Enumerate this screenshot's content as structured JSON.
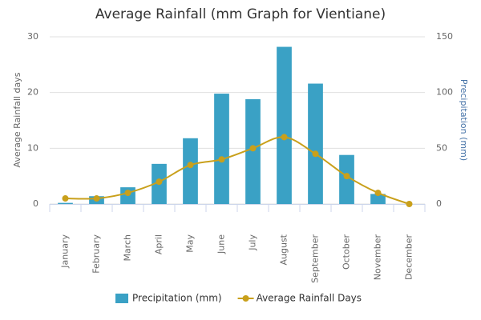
{
  "chart_data": {
    "type": "bar",
    "title": "Average Rainfall (mm Graph for Vientiane)",
    "categories": [
      "January",
      "February",
      "March",
      "April",
      "May",
      "June",
      "July",
      "August",
      "September",
      "October",
      "November",
      "December"
    ],
    "series": [
      {
        "name": "Precipitation (mm)",
        "type": "bar",
        "axis": "y2",
        "color": "#3aa1c5",
        "values": [
          1,
          7,
          15,
          36,
          59,
          99,
          94,
          141,
          108,
          44,
          9,
          0
        ]
      },
      {
        "name": "Average Rainfall Days",
        "type": "line",
        "axis": "y",
        "color": "#c9a01b",
        "values": [
          1,
          1,
          2,
          4,
          7,
          8,
          10,
          12,
          9,
          5,
          2,
          0
        ]
      }
    ],
    "ylabel": "Average Rainfall days",
    "y2label": "Precipitation (mm)",
    "ylim": [
      0,
      30
    ],
    "yticks": [
      0,
      10,
      20,
      30
    ],
    "y2lim": [
      0,
      150
    ],
    "y2ticks": [
      0,
      50,
      100,
      150
    ],
    "grid": true,
    "legend": "bottom"
  }
}
